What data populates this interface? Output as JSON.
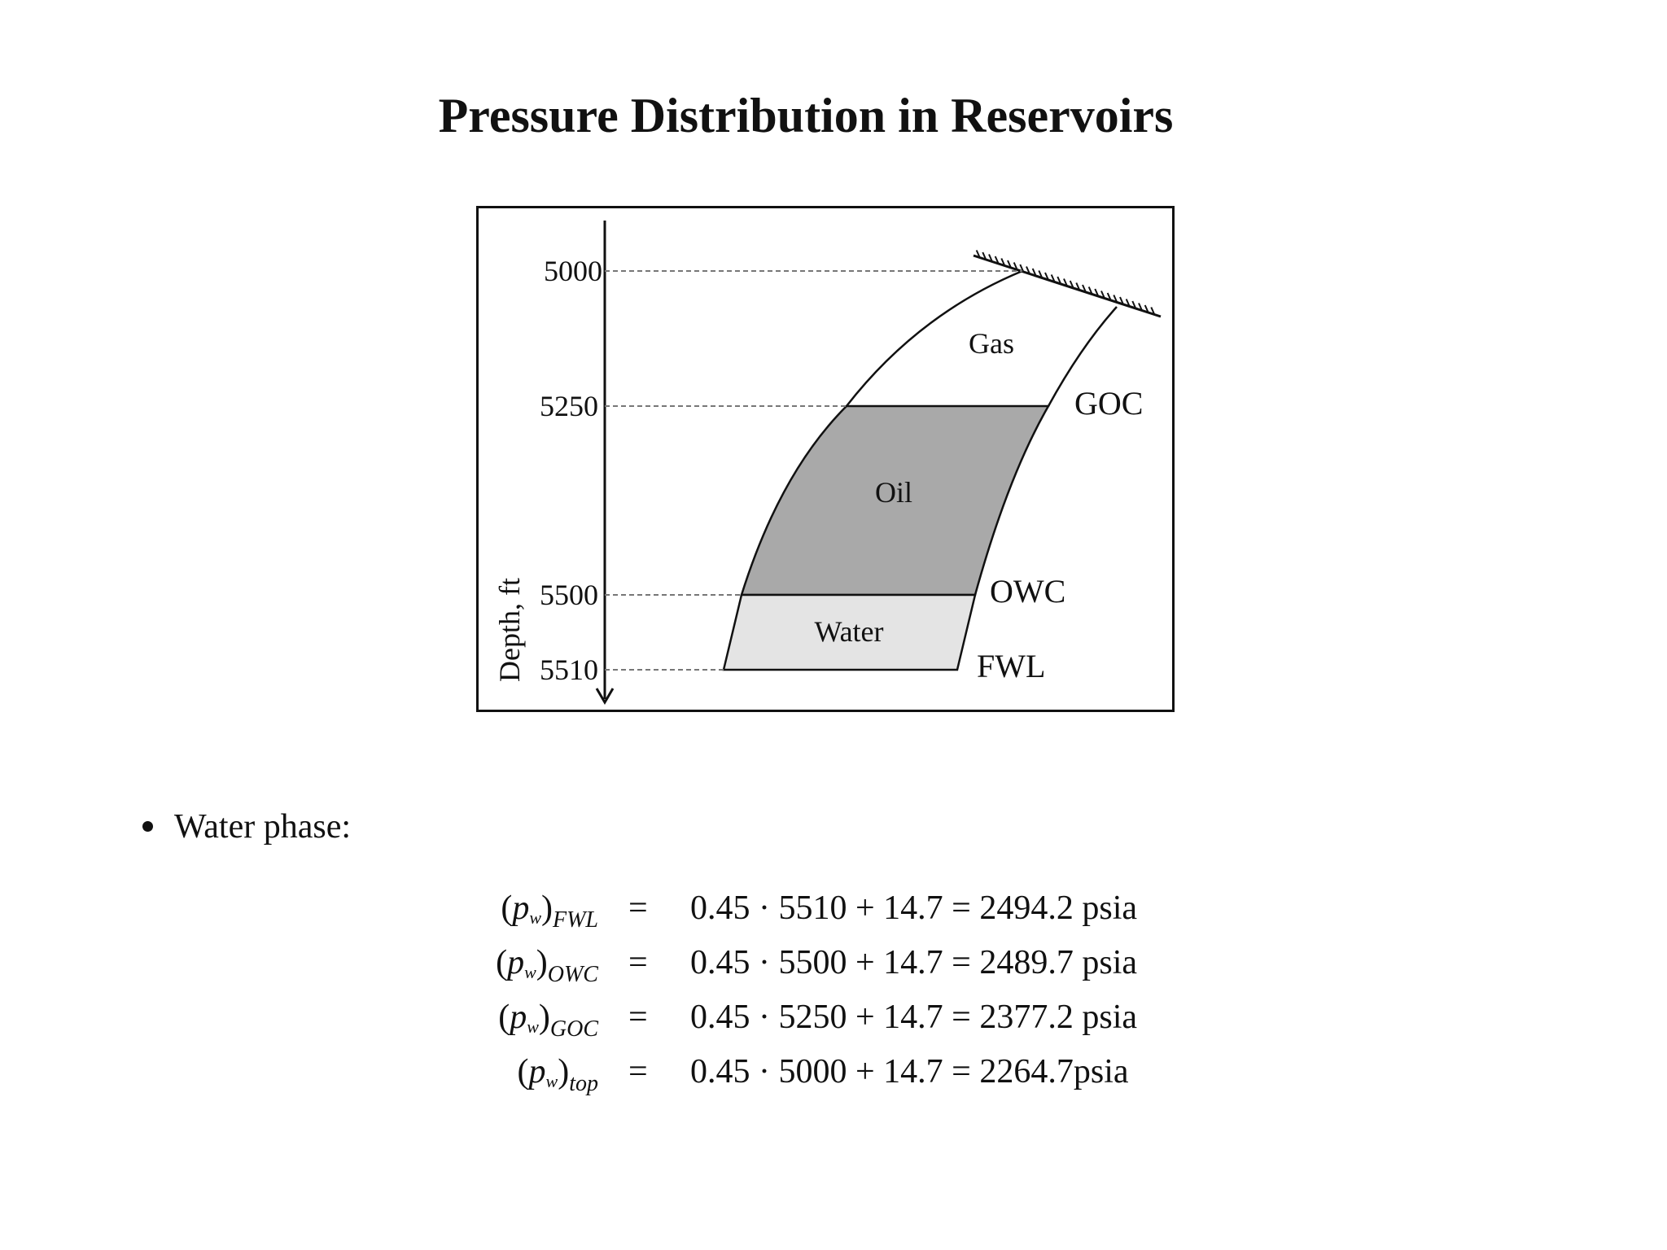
{
  "title": "Pressure Distribution in Reservoirs",
  "diagram": {
    "axis_label": "Depth, ft",
    "depth_ticks": [
      "5000",
      "5250",
      "5500",
      "5510"
    ],
    "zones": {
      "gas": "Gas",
      "oil": "Oil",
      "water": "Water"
    },
    "contacts": {
      "goc": "GOC",
      "owc": "OWC",
      "fwl": "FWL"
    },
    "colors": {
      "oil_fill": "#a9a9a9",
      "water_fill": "#e4e4e4",
      "gas_fill": "#ffffff",
      "line": "#111111",
      "dashed": "#777777"
    }
  },
  "bullet": {
    "text": "Water phase:"
  },
  "equations": [
    {
      "lhs_var": "p",
      "lhs_sub_var": "w",
      "lhs_sub": "FWL",
      "sign": "=",
      "rhs": "0.45 · 5510 + 14.7 = 2494.2 psia"
    },
    {
      "lhs_var": "p",
      "lhs_sub_var": "w",
      "lhs_sub": "OWC",
      "sign": "=",
      "rhs": "0.45 · 5500 + 14.7 = 2489.7 psia"
    },
    {
      "lhs_var": "p",
      "lhs_sub_var": "w",
      "lhs_sub": "GOC",
      "sign": "=",
      "rhs": "0.45 · 5250 + 14.7 = 2377.2 psia"
    },
    {
      "lhs_var": "p",
      "lhs_sub_var": "w",
      "lhs_sub": "top",
      "sign": "=",
      "rhs": "0.45 · 5000 + 14.7 = 2264.7psia"
    }
  ]
}
